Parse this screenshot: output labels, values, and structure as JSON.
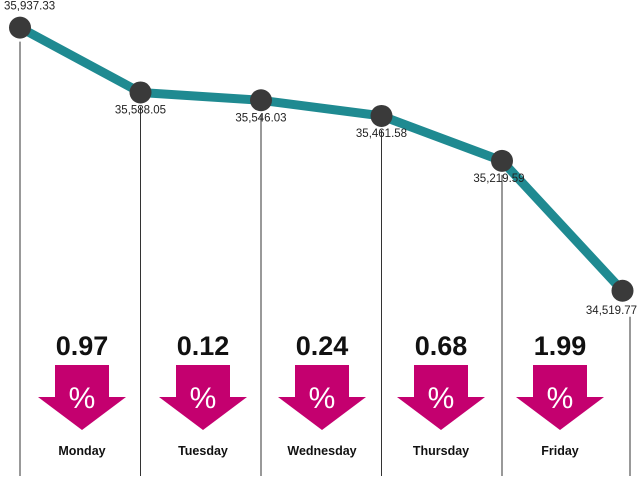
{
  "chart_data": {
    "type": "line",
    "title": "",
    "xlabel": "",
    "ylabel": "",
    "categories": [
      "Monday",
      "Tuesday",
      "Wednesday",
      "Thursday",
      "Friday"
    ],
    "series": [
      {
        "name": "",
        "x": [
          "",
          "Monday",
          "Tuesday",
          "Wednesday",
          "Thursday",
          "Friday"
        ],
        "values": [
          35937.33,
          35588.05,
          35546.03,
          35461.58,
          35219.59,
          34519.77
        ],
        "labels": [
          "35,937.33",
          "35,588.05",
          "35,546.03",
          "35,461.58",
          "35,219.59",
          "34,519.77"
        ]
      }
    ],
    "daily_change": {
      "direction": "down",
      "unit": "%",
      "values": [
        0.97,
        0.12,
        0.24,
        0.68,
        1.99
      ],
      "labels": [
        "0.97",
        "0.12",
        "0.24",
        "0.68",
        "1.99"
      ]
    },
    "ylim": [
      34400,
      36000
    ],
    "grid": false,
    "legend": "none",
    "colors": {
      "line": "#1f8a91",
      "point": "#3a3a3a",
      "arrow": "#c4006f",
      "divider": "#333333"
    }
  }
}
